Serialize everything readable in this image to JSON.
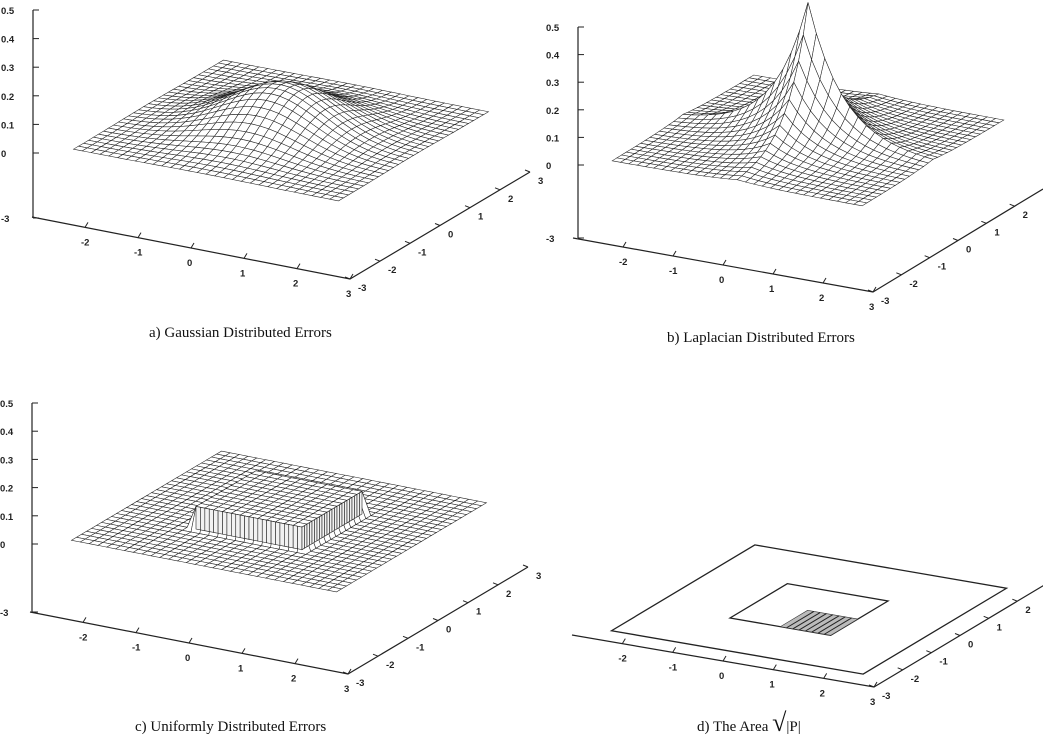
{
  "chart_data": [
    {
      "id": "a",
      "type": "surface",
      "distribution": "gaussian",
      "caption": "a) Gaussian Distributed Errors",
      "x_range": [
        -3,
        3
      ],
      "y_range": [
        -3,
        3
      ],
      "z_range": [
        -3,
        0.5
      ],
      "surface_domain": [
        -2.5,
        2.5
      ],
      "peak_value": 0.16,
      "z_ticks": [
        "0.5",
        "0.4",
        "0.3",
        "0.2",
        "0.1",
        "0",
        "-3"
      ],
      "x_ticks": [
        "-2",
        "-1",
        "0",
        "1",
        "2",
        "3"
      ],
      "y_ticks": [
        "-3",
        "-2",
        "-1",
        "0",
        "1",
        "2",
        "3"
      ]
    },
    {
      "id": "b",
      "type": "surface",
      "distribution": "laplacian",
      "caption": "b) Laplacian Distributed Errors",
      "x_range": [
        -3,
        3
      ],
      "y_range": [
        -3,
        3
      ],
      "z_range": [
        -3,
        0.5
      ],
      "surface_domain": [
        -2.5,
        2.5
      ],
      "peak_value": 0.5,
      "z_ticks": [
        "0.5",
        "0.4",
        "0.3",
        "0.2",
        "0.1",
        "0",
        "-3"
      ],
      "x_ticks": [
        "-2",
        "-1",
        "0",
        "1",
        "2",
        "3"
      ],
      "y_ticks": [
        "-3",
        "-2",
        "-1",
        "0",
        "1",
        "2"
      ]
    },
    {
      "id": "c",
      "type": "surface",
      "distribution": "uniform",
      "caption": "c) Uniformly Distributed Errors",
      "x_range": [
        -3,
        3
      ],
      "y_range": [
        -3,
        3
      ],
      "z_range": [
        -3,
        0.5
      ],
      "surface_domain": [
        -2.5,
        2.5
      ],
      "plateau_half_width": 1.0,
      "plateau_value": 0.08,
      "z_ticks": [
        "0.5",
        "0.4",
        "0.3",
        "0.2",
        "0.1",
        "0",
        "-3"
      ],
      "x_ticks": [
        "-2",
        "-1",
        "0",
        "1",
        "2",
        "3"
      ],
      "y_ticks": [
        "-3",
        "-2",
        "-1",
        "0",
        "1",
        "2",
        "3"
      ]
    },
    {
      "id": "d",
      "type": "region",
      "caption_prefix": "d) The Area ",
      "caption_radical": "√",
      "caption_suffix": "|P|",
      "x_range": [
        -3,
        3
      ],
      "y_range": [
        -3,
        3
      ],
      "outer_square_half_width": 2.5,
      "middle_square_half_width": 1.0,
      "inner_region": [
        0,
        1
      ],
      "x_ticks": [
        "-2",
        "-1",
        "0",
        "1",
        "2",
        "3"
      ],
      "y_ticks": [
        "-3",
        "-2",
        "-1",
        "0",
        "1",
        "2"
      ]
    }
  ]
}
